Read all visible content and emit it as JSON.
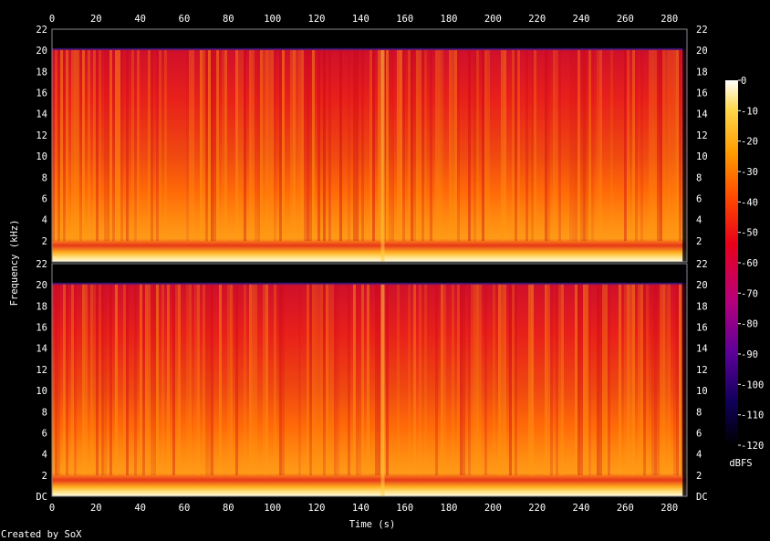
{
  "chart_data": {
    "type": "heatmap",
    "xlabel": "Time (s)",
    "ylabel": "Frequency (kHz)",
    "x_ticks": [
      "0",
      "20",
      "40",
      "60",
      "80",
      "100",
      "120",
      "140",
      "160",
      "180",
      "200",
      "220",
      "240",
      "260",
      "280"
    ],
    "xlim": [
      0,
      288
    ],
    "y_ticks": [
      "DC",
      "2",
      "4",
      "6",
      "8",
      "10",
      "12",
      "14",
      "16",
      "18",
      "20",
      "22"
    ],
    "ylim": [
      0,
      22
    ],
    "channels": 2,
    "colorbar": {
      "label": "dBFS",
      "ticks": [
        "0",
        "-10",
        "-20",
        "-30",
        "-40",
        "-50",
        "-60",
        "-70",
        "-80",
        "-90",
        "-100",
        "-110",
        "-120"
      ],
      "range": [
        -120,
        0
      ],
      "colors": [
        "#000000",
        "#10005a",
        "#5a009a",
        "#b8007a",
        "#e8001a",
        "#ff4a00",
        "#ff9a00",
        "#ffd84a",
        "#ffffff"
      ]
    },
    "observations": {
      "content_until_s": 286,
      "cutoff_khz": 20,
      "transient_at_s": 150,
      "strong_low_band_khz": [
        0,
        1
      ]
    }
  },
  "credit": "Created by SoX"
}
